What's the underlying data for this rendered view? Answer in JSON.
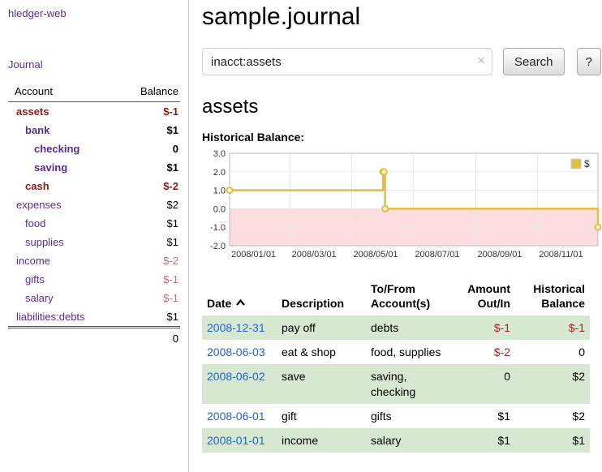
{
  "sidebar": {
    "brand": "hledger-web",
    "journal_link": "Journal",
    "accounts_header": {
      "account": "Account",
      "balance": "Balance"
    },
    "accounts": [
      {
        "name": "assets",
        "balance": "$-1",
        "depth": 0,
        "bold": true,
        "tone": "negative-strong"
      },
      {
        "name": "bank",
        "balance": "$1",
        "depth": 1,
        "bold": true,
        "tone": "normal"
      },
      {
        "name": "checking",
        "balance": "0",
        "depth": 2,
        "bold": true,
        "tone": "normal"
      },
      {
        "name": "saving",
        "balance": "$1",
        "depth": 2,
        "bold": true,
        "tone": "normal"
      },
      {
        "name": "cash",
        "balance": "$-2",
        "depth": 1,
        "bold": true,
        "tone": "negative-strong"
      },
      {
        "name": "expenses",
        "balance": "$2",
        "depth": 0,
        "bold": false,
        "tone": "normal"
      },
      {
        "name": "food",
        "balance": "$1",
        "depth": 1,
        "bold": false,
        "tone": "normal"
      },
      {
        "name": "supplies",
        "balance": "$1",
        "depth": 1,
        "bold": false,
        "tone": "normal"
      },
      {
        "name": "income",
        "balance": "$-2",
        "depth": 0,
        "bold": false,
        "tone": "negative-soft"
      },
      {
        "name": "gifts",
        "balance": "$-1",
        "depth": 1,
        "bold": false,
        "tone": "negative-soft"
      },
      {
        "name": "salary",
        "balance": "$-1",
        "depth": 1,
        "bold": false,
        "tone": "negative-soft"
      },
      {
        "name": "liabilities:debts",
        "balance": "$1",
        "depth": 0,
        "bold": false,
        "tone": "normal"
      }
    ],
    "total": "0"
  },
  "main": {
    "title": "sample.journal",
    "search": {
      "value": "inacct:assets",
      "button": "Search",
      "help": "?",
      "clear_icon": "×"
    },
    "account_heading": "assets",
    "chart_label": "Historical Balance:"
  },
  "chart_data": {
    "type": "line",
    "step": true,
    "title": "Historical Balance",
    "legend": [
      {
        "label": "$",
        "color": "#e0bf47"
      }
    ],
    "legend_position": "top-right",
    "x_range": [
      "2008-01-01",
      "2008-12-31"
    ],
    "ylim": [
      -2,
      3
    ],
    "yticks": [
      "3.0",
      "2.0",
      "1.0",
      "0.0",
      "-1.0",
      "-2.0"
    ],
    "xticks": [
      "2008/01/01",
      "2008/03/01",
      "2008/05/01",
      "2008/07/01",
      "2008/09/01",
      "2008/11/01"
    ],
    "series": [
      {
        "name": "$",
        "points": [
          {
            "date": "2008-01-01",
            "value": 1
          },
          {
            "date": "2008-06-01",
            "value": 2
          },
          {
            "date": "2008-06-02",
            "value": 2
          },
          {
            "date": "2008-06-03",
            "value": 0
          },
          {
            "date": "2008-12-31",
            "value": -1
          }
        ]
      }
    ],
    "negative_region": true,
    "negative_region_color": "#fcdcdc",
    "marker_fill": "#fdf3cf",
    "grid_color": "#e9e9e9",
    "border_color": "#bbbbbb"
  },
  "register": {
    "headers": {
      "date": "Date",
      "description": "Description",
      "account": "To/From Account(s)",
      "amount": "Amount Out/In",
      "balance": "Historical Balance"
    },
    "sort": "ascending",
    "rows": [
      {
        "date": "2008-12-31",
        "description": "pay off",
        "accounts": "debts",
        "amount": "$-1",
        "amount_negative": true,
        "balance": "$-1",
        "balance_negative": true
      },
      {
        "date": "2008-06-03",
        "description": "eat & shop",
        "accounts": "food, supplies",
        "amount": "$-2",
        "amount_negative": true,
        "balance": "0",
        "balance_negative": false
      },
      {
        "date": "2008-06-02",
        "description": "save",
        "accounts": "saving, checking",
        "amount": "0",
        "amount_negative": false,
        "balance": "$2",
        "balance_negative": false
      },
      {
        "date": "2008-06-01",
        "description": "gift",
        "accounts": "gifts",
        "amount": "$1",
        "amount_negative": false,
        "balance": "$2",
        "balance_negative": false
      },
      {
        "date": "2008-01-01",
        "description": "income",
        "accounts": "salary",
        "amount": "$1",
        "amount_negative": false,
        "balance": "$1",
        "balance_negative": false
      }
    ]
  },
  "colors": {
    "accent_purple": "#5c2d91",
    "negative_strong": "#8b1a1a",
    "negative_soft": "#c36f6f",
    "table_negative": "#a82424",
    "link_blue": "#2563c9",
    "row_green": "#d6e8d0",
    "chart_line": "#e0bf47",
    "chart_negative_bg": "#fcdcdc"
  }
}
